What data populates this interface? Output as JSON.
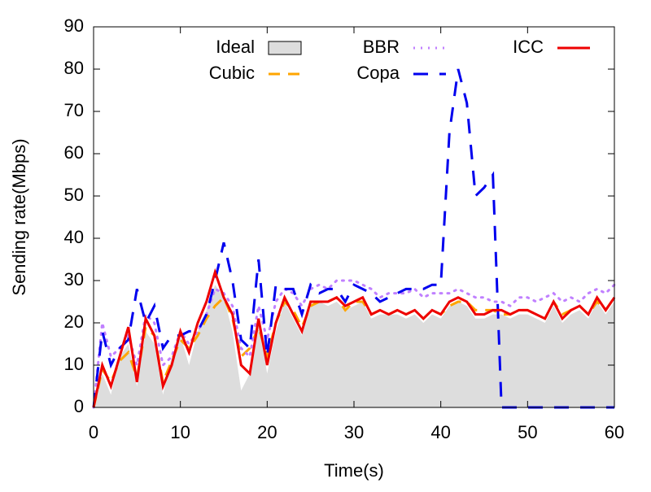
{
  "chart_data": {
    "type": "line",
    "xlabel": "Time(s)",
    "ylabel": "Sending rate(Mbps)",
    "x": [
      0,
      1,
      2,
      3,
      4,
      5,
      6,
      7,
      8,
      9,
      10,
      11,
      12,
      13,
      14,
      15,
      16,
      17,
      18,
      19,
      20,
      21,
      22,
      23,
      24,
      25,
      26,
      27,
      28,
      29,
      30,
      31,
      32,
      33,
      34,
      35,
      36,
      37,
      38,
      39,
      40,
      41,
      42,
      43,
      44,
      45,
      46,
      47,
      48,
      49,
      50,
      51,
      52,
      53,
      54,
      55,
      56,
      57,
      58,
      59,
      60
    ],
    "xlim": [
      0,
      60
    ],
    "xticks": [
      0,
      10,
      20,
      30,
      40,
      50,
      60
    ],
    "ylim": [
      0,
      90
    ],
    "yticks": [
      0,
      10,
      20,
      30,
      40,
      50,
      60,
      70,
      80,
      90
    ],
    "series": [
      {
        "name": "Ideal",
        "color": "#dddddd",
        "line_style": "area",
        "values": [
          0,
          8,
          3,
          12,
          15,
          5,
          18,
          15,
          3,
          12,
          17,
          10,
          18,
          23,
          29,
          26,
          18,
          4,
          8,
          20,
          8,
          18,
          25,
          21,
          17,
          24,
          25,
          24,
          25,
          23,
          24,
          25,
          21,
          22,
          22,
          22,
          21,
          22,
          20,
          22,
          21,
          24,
          25,
          24,
          21,
          21,
          22,
          22,
          21,
          22,
          22,
          21,
          20,
          24,
          20,
          22,
          23,
          21,
          25,
          22,
          25
        ]
      },
      {
        "name": "Cubic",
        "color": "#ffa500",
        "line_style": "dashed",
        "values": [
          0,
          9,
          6,
          11,
          13,
          7,
          19,
          17,
          6,
          11,
          16,
          14,
          17,
          21,
          24,
          26,
          21,
          12,
          14,
          19,
          12,
          20,
          25,
          23,
          19,
          24,
          25,
          25,
          26,
          23,
          25,
          25,
          22,
          23,
          22,
          23,
          22,
          23,
          21,
          23,
          22,
          24,
          25,
          25,
          23,
          23,
          23,
          22,
          22,
          23,
          23,
          22,
          21,
          25,
          22,
          23,
          24,
          22,
          25,
          23,
          26
        ]
      },
      {
        "name": "BBR",
        "color": "#c080ff",
        "line_style": "dotted",
        "values": [
          0,
          20,
          12,
          14,
          17,
          10,
          22,
          20,
          10,
          12,
          18,
          15,
          18,
          22,
          28,
          27,
          24,
          14,
          12,
          24,
          16,
          25,
          28,
          27,
          24,
          28,
          29,
          28,
          30,
          30,
          30,
          29,
          28,
          26,
          27,
          27,
          27,
          28,
          26,
          27,
          27,
          27,
          28,
          27,
          26,
          26,
          25,
          25,
          24,
          26,
          26,
          25,
          26,
          27,
          25,
          26,
          25,
          27,
          28,
          27,
          29
        ]
      },
      {
        "name": "Copa",
        "color": "#0000ee",
        "line_style": "longdash",
        "values": [
          0,
          18,
          10,
          14,
          16,
          28,
          20,
          24,
          14,
          17,
          17,
          18,
          18,
          22,
          30,
          39,
          30,
          16,
          14,
          35,
          12,
          29,
          28,
          28,
          22,
          29,
          27,
          28,
          28,
          25,
          29,
          28,
          27,
          25,
          26,
          27,
          28,
          28,
          28,
          29,
          29,
          65,
          80,
          72,
          50,
          52,
          55,
          0,
          0,
          0,
          0,
          0,
          0,
          0,
          0,
          0,
          0,
          0,
          0,
          0,
          0
        ]
      },
      {
        "name": "ICC",
        "color": "#ee0000",
        "line_style": "solid",
        "values": [
          0,
          10,
          5,
          12,
          19,
          6,
          21,
          17,
          5,
          10,
          18,
          13,
          20,
          25,
          32,
          26,
          22,
          10,
          8,
          21,
          10,
          20,
          26,
          22,
          18,
          25,
          25,
          25,
          26,
          24,
          25,
          26,
          22,
          23,
          22,
          23,
          22,
          23,
          21,
          23,
          22,
          25,
          26,
          25,
          22,
          22,
          23,
          23,
          22,
          23,
          23,
          22,
          21,
          25,
          21,
          23,
          24,
          22,
          26,
          23,
          26
        ]
      }
    ]
  }
}
